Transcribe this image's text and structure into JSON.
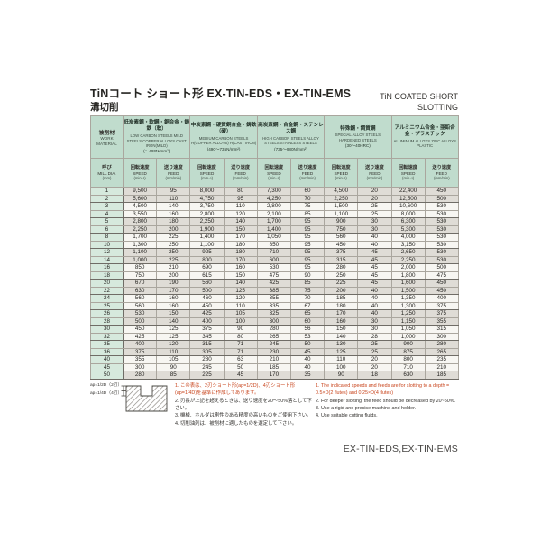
{
  "colors": {
    "header-green": "#c0dccd",
    "dia-green": "#d6e9dd",
    "row-gray": "#dfdcd6",
    "row-white": "#f7f6f2",
    "note-red": "#c8441c"
  },
  "header": {
    "title_jp": "TiNコート ショート形 EX-TIN-EDS・EX-TIN-EMS",
    "subtitle_jp": "溝切削",
    "title_en": "TiN COATED  SHORT",
    "subtitle_en": "SLOTTING"
  },
  "table": {
    "work_material": {
      "jp": "被削材",
      "en": "WORK MATERIAL"
    },
    "mill_dia": {
      "jp": "呼び",
      "en": "MILL DIA.",
      "unit": "(mm)"
    },
    "speed": {
      "jp": "回転速度",
      "en": "SPEED",
      "unit": "(min⁻¹)"
    },
    "feed": {
      "jp": "送り速度",
      "en": "FEED",
      "unit": "(mm/min)"
    },
    "groups": [
      {
        "jp": "低炭素鋼・軟鋼・銅合金・鋳鉄（軟）",
        "en": "LOW CARBON STEELS MILD STEELS COPPER ALLOYS CAST IRON(MILD)",
        "range": "(～490N/mm²)"
      },
      {
        "jp": "中炭素鋼・硬質銅合金・鋳鉄（硬）",
        "en": "MEDIUM CARBON STEELS H(COPPER ALLOYS) H(CAST IRON)",
        "range": "(490～735N/mm²)"
      },
      {
        "jp": "高炭素鋼・合金鋼・ステンレス鋼",
        "en": "HIGH CARBON STEELS ALLOY STEELS STAINLESS STEELS",
        "range": "(735～980N/mm²)"
      },
      {
        "jp": "特殊鋼・調質鋼",
        "en": "SPECIAL ALLOY STEELS HARDENED STEELS",
        "range": "(30～40HRC)"
      },
      {
        "jp": "アルミニウム合金・亜鉛合金・プラスチック",
        "en": "ALUMINUM ALLOYS ZINC ALLOYS PLASTIC",
        "range": ""
      }
    ],
    "rows": [
      [
        "1",
        "9,500",
        "95",
        "8,000",
        "80",
        "7,300",
        "60",
        "4,500",
        "20",
        "22,400",
        "450"
      ],
      [
        "2",
        "5,600",
        "110",
        "4,750",
        "95",
        "4,250",
        "70",
        "2,250",
        "20",
        "12,500",
        "500"
      ],
      [
        "3",
        "4,500",
        "140",
        "3,750",
        "110",
        "2,800",
        "75",
        "1,500",
        "25",
        "10,600",
        "530"
      ],
      [
        "4",
        "3,550",
        "160",
        "2,800",
        "120",
        "2,100",
        "85",
        "1,100",
        "25",
        "8,000",
        "530"
      ],
      [
        "5",
        "2,800",
        "180",
        "2,250",
        "140",
        "1,700",
        "95",
        "900",
        "30",
        "6,300",
        "530"
      ],
      [
        "6",
        "2,250",
        "200",
        "1,900",
        "150",
        "1,400",
        "95",
        "750",
        "30",
        "5,300",
        "530"
      ],
      [
        "8",
        "1,700",
        "225",
        "1,400",
        "170",
        "1,050",
        "95",
        "560",
        "40",
        "4,000",
        "530"
      ],
      [
        "10",
        "1,300",
        "250",
        "1,100",
        "180",
        "850",
        "95",
        "450",
        "40",
        "3,150",
        "530"
      ],
      [
        "12",
        "1,100",
        "250",
        "925",
        "180",
        "710",
        "95",
        "375",
        "45",
        "2,650",
        "530"
      ],
      [
        "14",
        "1,000",
        "225",
        "800",
        "170",
        "600",
        "95",
        "315",
        "45",
        "2,250",
        "530"
      ],
      [
        "16",
        "850",
        "210",
        "690",
        "160",
        "530",
        "95",
        "280",
        "45",
        "2,000",
        "500"
      ],
      [
        "18",
        "750",
        "200",
        "615",
        "150",
        "475",
        "90",
        "250",
        "45",
        "1,800",
        "475"
      ],
      [
        "20",
        "670",
        "190",
        "560",
        "140",
        "425",
        "85",
        "225",
        "45",
        "1,600",
        "450"
      ],
      [
        "22",
        "630",
        "170",
        "500",
        "125",
        "385",
        "75",
        "200",
        "40",
        "1,500",
        "450"
      ],
      [
        "24",
        "560",
        "160",
        "460",
        "120",
        "355",
        "70",
        "185",
        "40",
        "1,350",
        "400"
      ],
      [
        "25",
        "560",
        "160",
        "450",
        "110",
        "335",
        "67",
        "180",
        "40",
        "1,300",
        "375"
      ],
      [
        "26",
        "530",
        "150",
        "425",
        "105",
        "325",
        "65",
        "170",
        "40",
        "1,250",
        "375"
      ],
      [
        "28",
        "500",
        "140",
        "400",
        "100",
        "300",
        "60",
        "160",
        "30",
        "1,150",
        "355"
      ],
      [
        "30",
        "450",
        "125",
        "375",
        "90",
        "280",
        "56",
        "150",
        "30",
        "1,050",
        "315"
      ],
      [
        "32",
        "425",
        "125",
        "345",
        "80",
        "265",
        "53",
        "140",
        "28",
        "1,000",
        "300"
      ],
      [
        "35",
        "400",
        "120",
        "315",
        "71",
        "245",
        "50",
        "130",
        "25",
        "900",
        "280"
      ],
      [
        "36",
        "375",
        "110",
        "305",
        "71",
        "230",
        "45",
        "125",
        "25",
        "875",
        "265"
      ],
      [
        "40",
        "355",
        "105",
        "280",
        "63",
        "210",
        "40",
        "110",
        "20",
        "800",
        "235"
      ],
      [
        "45",
        "300",
        "90",
        "245",
        "50",
        "185",
        "40",
        "100",
        "20",
        "710",
        "210"
      ],
      [
        "50",
        "280",
        "85",
        "225",
        "45",
        "170",
        "35",
        "90",
        "18",
        "630",
        "185"
      ]
    ]
  },
  "footnotes": {
    "diagram_labels": [
      "ap=1/2D（2刃）",
      "ap=1/4D（4刃）"
    ],
    "jp": [
      {
        "text": "1. この表は、2刃ショート形(ap=1/2D)、4刃ショート形(ap=1/4D)を基準に作成してあります。",
        "red": true
      },
      {
        "text": "2. 刃長が上記を超えるときは、送り速度を20～50%落として下さい。",
        "red": false
      },
      {
        "text": "3. 機械、ホルダは剛性のある精度の高いものをご使用下さい。",
        "red": false
      },
      {
        "text": "4. 切削油剤は、被削材に適したものを選定して下さい。",
        "red": false
      }
    ],
    "en": [
      {
        "text": "1. The indicated speeds and feeds are for slotting to a depth = 0.5×D(2 flutes) and 0.25×D(4 flutes)",
        "red": true
      },
      {
        "text": "2. For deeper slotting, the feed should be decreased by 20~50%.",
        "red": false
      },
      {
        "text": "3. Use a rigid and precise machine and holder.",
        "red": false
      },
      {
        "text": "4. Use suitable cutting fluids.",
        "red": false
      }
    ]
  },
  "footer": {
    "model": "EX-TIN-EDS,EX-TIN-EMS"
  }
}
